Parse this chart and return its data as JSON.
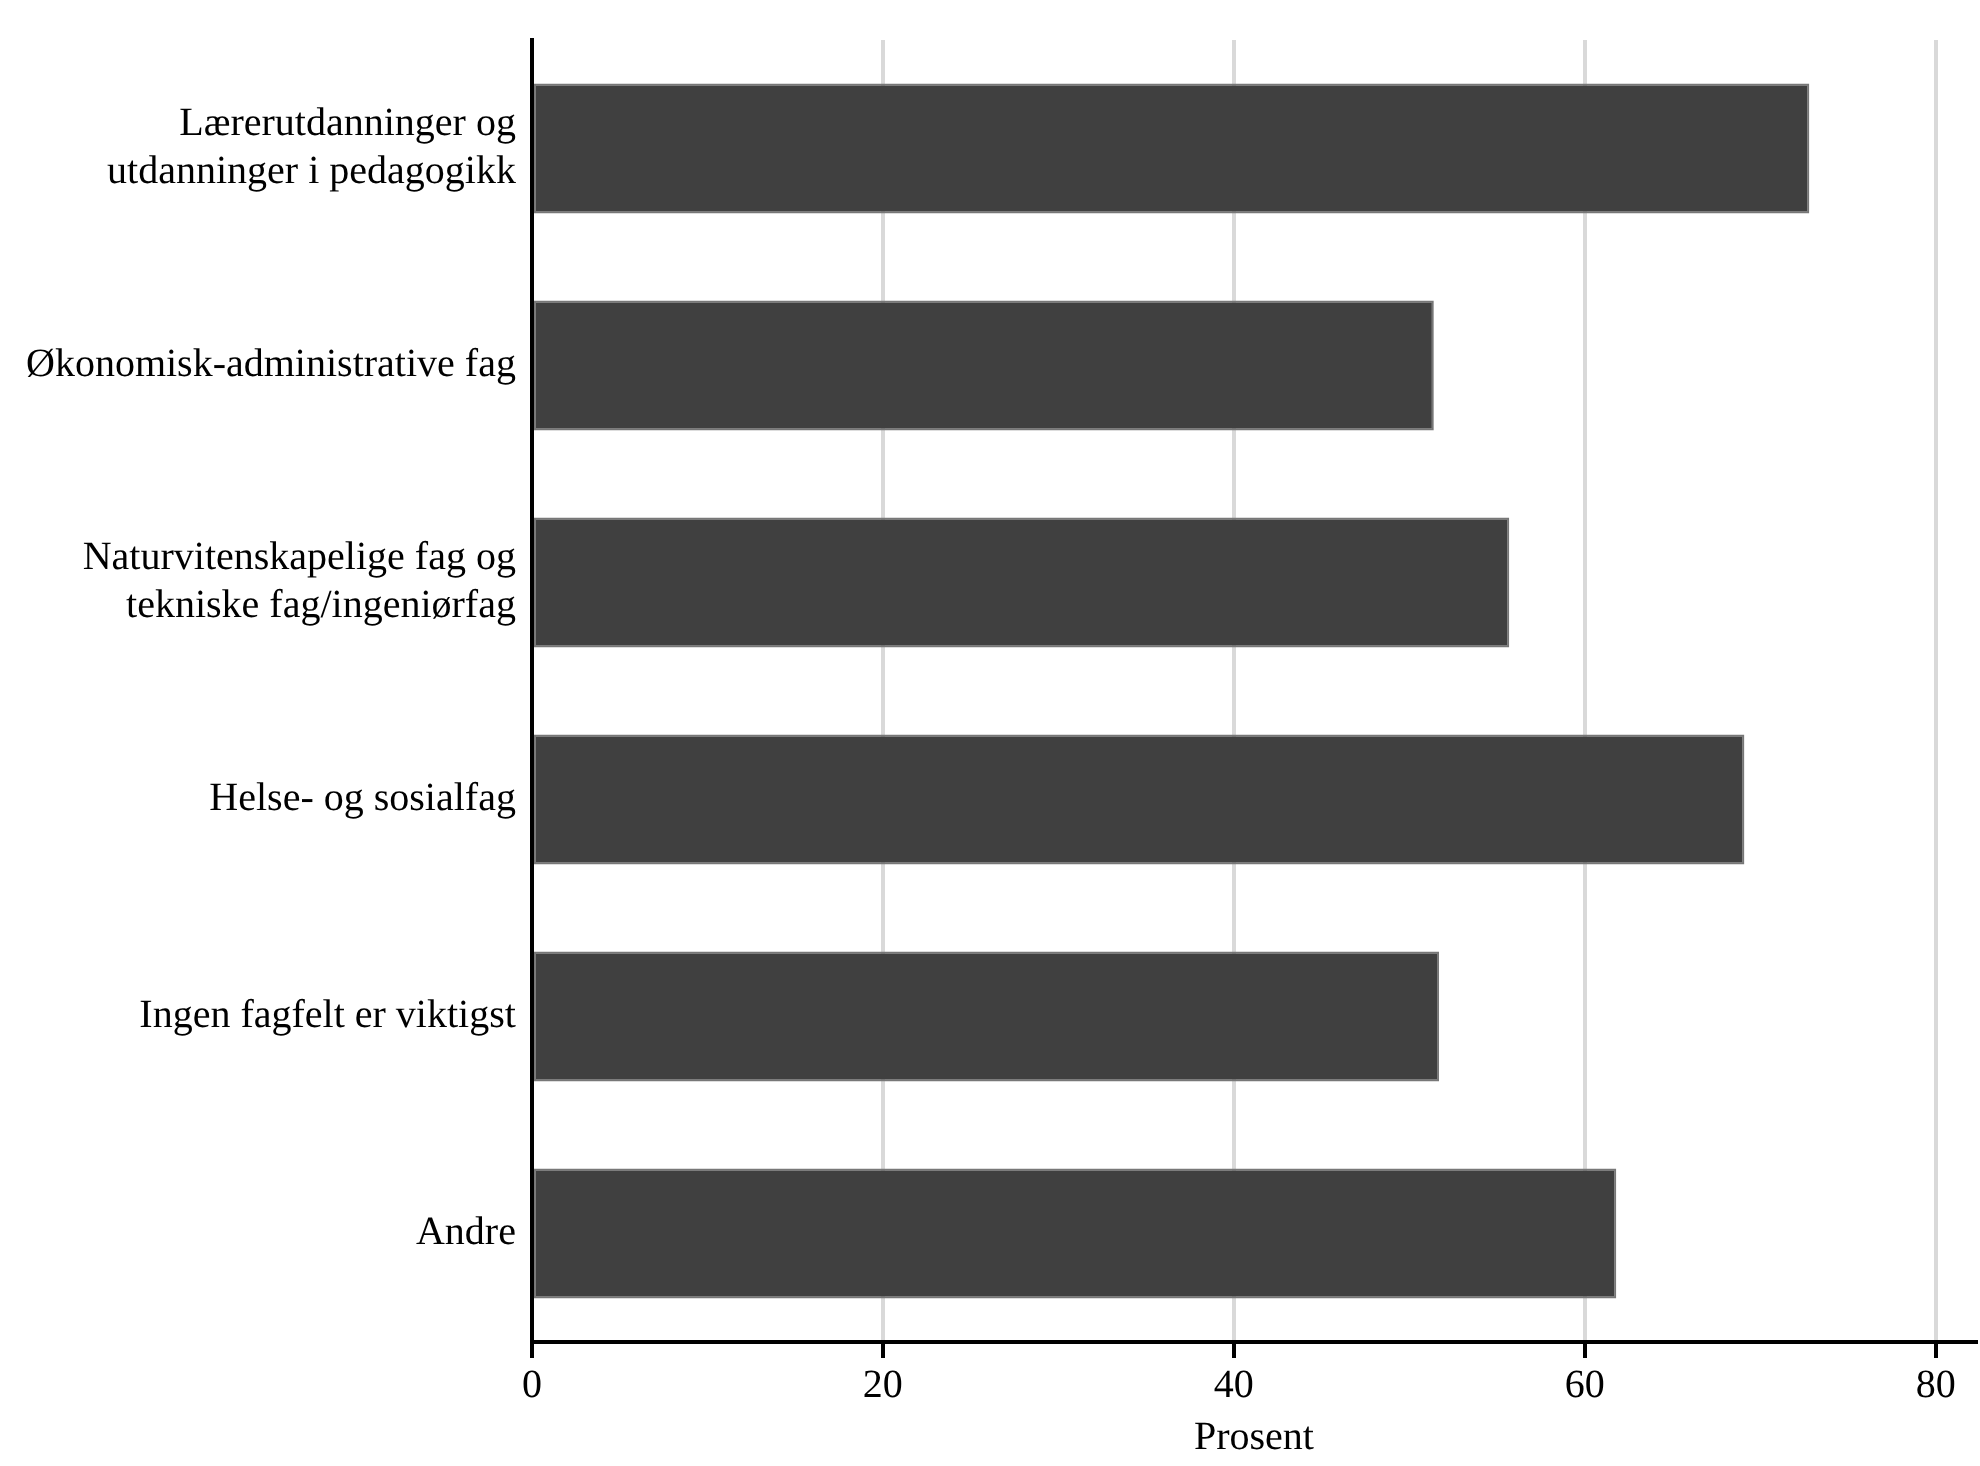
{
  "chart_data": {
    "type": "bar",
    "orientation": "horizontal",
    "xlabel": "Prosent",
    "categories": [
      "Lærerutdanninger og\nutdanninger i pedagogikk",
      "Økonomisk-administrative fag",
      "Naturvitenskapelige fag og\ntekniske fag/ingeniørfag",
      "Helse- og sosialfag",
      "Ingen fagfelt er viktigst",
      "Andre"
    ],
    "values": [
      72.8,
      51.4,
      55.7,
      69.1,
      51.7,
      61.8
    ],
    "color": "#404040",
    "xlim": [
      0,
      82.3
    ],
    "xticks": [
      0,
      20,
      40,
      60,
      80
    ],
    "grid": "x",
    "legend": false
  }
}
